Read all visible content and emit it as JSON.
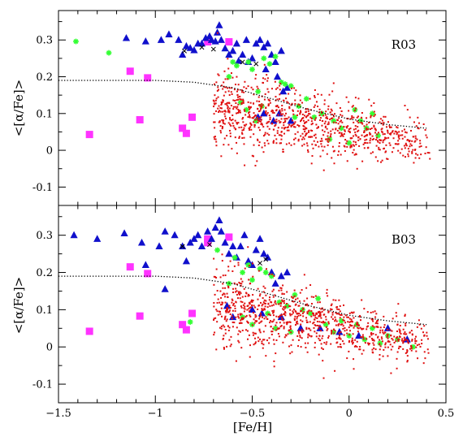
{
  "chart_data": [
    {
      "type": "scatter",
      "panel_label": "R03",
      "xlabel": "[Fe/H]",
      "ylabel": "<[α/Fe]>",
      "xlim": [
        -1.5,
        0.5
      ],
      "ylim": [
        -0.15,
        0.38
      ],
      "xticks": [
        -1.5,
        -1,
        -0.5,
        0,
        0.5
      ],
      "xtick_labels": [
        "",
        "",
        "",
        "",
        ""
      ],
      "yticks": [
        -0.1,
        0,
        0.1,
        0.2,
        0.3
      ],
      "ytick_labels": [
        "-0.1",
        "0",
        "0.1",
        "0.2",
        "0.3"
      ],
      "model_line": [
        [
          -1.5,
          0.19
        ],
        [
          -1.0,
          0.19
        ],
        [
          -0.8,
          0.185
        ],
        [
          -0.6,
          0.17
        ],
        [
          -0.4,
          0.14
        ],
        [
          -0.2,
          0.11
        ],
        [
          0.0,
          0.085
        ],
        [
          0.2,
          0.07
        ],
        [
          0.4,
          0.06
        ]
      ],
      "series": [
        {
          "marker": "square",
          "color": "#ff33ff",
          "points": [
            [
              -1.34,
              0.043
            ],
            [
              -1.13,
              0.215
            ],
            [
              -1.08,
              0.083
            ],
            [
              -1.04,
              0.197
            ],
            [
              -0.86,
              0.06
            ],
            [
              -0.84,
              0.046
            ],
            [
              -0.81,
              0.09
            ],
            [
              -0.73,
              0.295
            ],
            [
              -0.62,
              0.295
            ]
          ]
        },
        {
          "marker": "triangle",
          "color": "#1010cc",
          "points": [
            [
              -1.15,
              0.305
            ],
            [
              -1.05,
              0.296
            ],
            [
              -0.97,
              0.3
            ],
            [
              -0.93,
              0.315
            ],
            [
              -0.88,
              0.3
            ],
            [
              -0.86,
              0.26
            ],
            [
              -0.84,
              0.283
            ],
            [
              -0.82,
              0.278
            ],
            [
              -0.8,
              0.272
            ],
            [
              -0.78,
              0.29
            ],
            [
              -0.76,
              0.29
            ],
            [
              -0.74,
              0.305
            ],
            [
              -0.72,
              0.31
            ],
            [
              -0.71,
              0.3
            ],
            [
              -0.69,
              0.296
            ],
            [
              -0.68,
              0.32
            ],
            [
              -0.67,
              0.34
            ],
            [
              -0.66,
              0.3
            ],
            [
              -0.64,
              0.277
            ],
            [
              -0.62,
              0.26
            ],
            [
              -0.6,
              0.27
            ],
            [
              -0.58,
              0.29
            ],
            [
              -0.57,
              0.243
            ],
            [
              -0.55,
              0.26
            ],
            [
              -0.53,
              0.3
            ],
            [
              -0.52,
              0.24
            ],
            [
              -0.5,
              0.25
            ],
            [
              -0.48,
              0.29
            ],
            [
              -0.46,
              0.3
            ],
            [
              -0.44,
              0.28
            ],
            [
              -0.43,
              0.22
            ],
            [
              -0.42,
              0.29
            ],
            [
              -0.4,
              0.26
            ],
            [
              -0.38,
              0.24
            ],
            [
              -0.37,
              0.2
            ],
            [
              -0.35,
              0.27
            ],
            [
              -0.34,
              0.16
            ],
            [
              -0.32,
              0.17
            ],
            [
              -0.47,
              0.09
            ],
            [
              -0.44,
              0.1
            ],
            [
              -0.39,
              0.08
            ],
            [
              -0.36,
              0.1
            ],
            [
              -0.3,
              0.08
            ]
          ]
        },
        {
          "marker": "star",
          "color": "#33ff33",
          "points": [
            [
              -1.41,
              0.296
            ],
            [
              -1.24,
              0.265
            ],
            [
              -0.62,
              0.2
            ],
            [
              -0.6,
              0.24
            ],
            [
              -0.58,
              0.23
            ],
            [
              -0.52,
              0.24
            ],
            [
              -0.5,
              0.22
            ],
            [
              -0.47,
              0.16
            ],
            [
              -0.44,
              0.25
            ],
            [
              -0.41,
              0.235
            ],
            [
              -0.38,
              0.255
            ],
            [
              -0.35,
              0.185
            ],
            [
              -0.33,
              0.18
            ],
            [
              -0.3,
              0.175
            ],
            [
              -0.26,
              0.12
            ],
            [
              -0.22,
              0.14
            ],
            [
              -0.18,
              0.09
            ],
            [
              -0.14,
              0.1
            ],
            [
              -0.1,
              0.03
            ],
            [
              -0.08,
              0.08
            ],
            [
              -0.04,
              0.06
            ],
            [
              0.0,
              0.02
            ],
            [
              0.03,
              0.11
            ],
            [
              0.06,
              0.08
            ],
            [
              0.09,
              0.06
            ],
            [
              0.12,
              0.1
            ],
            [
              0.15,
              0.04
            ],
            [
              -0.28,
              0.09
            ],
            [
              -0.56,
              0.13
            ],
            [
              -0.53,
              0.11
            ],
            [
              -0.48,
              0.08
            ],
            [
              -0.45,
              0.12
            ]
          ]
        },
        {
          "marker": "cross",
          "color": "#000000",
          "points": [
            [
              -0.85,
              0.27
            ],
            [
              -0.76,
              0.28
            ],
            [
              -0.7,
              0.275
            ],
            [
              -0.55,
              0.24
            ],
            [
              -0.48,
              0.235
            ]
          ]
        },
        {
          "marker": "dot",
          "color": "#e01010",
          "cloud": {
            "seed": 7,
            "count": 950,
            "xrange": [
              -0.7,
              0.42
            ],
            "ycenter_at_xmin": 0.12,
            "ycenter_at_xmax": 0.015,
            "yspread": 0.045
          }
        }
      ]
    },
    {
      "type": "scatter",
      "panel_label": "B03",
      "xlabel": "[Fe/H]",
      "ylabel": "<[α/Fe]>",
      "xlim": [
        -1.5,
        0.5
      ],
      "ylim": [
        -0.15,
        0.38
      ],
      "xticks": [
        -1.5,
        -1,
        -0.5,
        0,
        0.5
      ],
      "xtick_labels": [
        "−1.5",
        "−1",
        "−0.5",
        "0",
        "0.5"
      ],
      "yticks": [
        -0.1,
        0,
        0.1,
        0.2,
        0.3
      ],
      "ytick_labels": [
        "-0.1",
        "0",
        "0.1",
        "0.2",
        "0.3"
      ],
      "model_line": [
        [
          -1.5,
          0.19
        ],
        [
          -1.0,
          0.19
        ],
        [
          -0.8,
          0.185
        ],
        [
          -0.6,
          0.17
        ],
        [
          -0.4,
          0.14
        ],
        [
          -0.2,
          0.11
        ],
        [
          0.0,
          0.085
        ],
        [
          0.2,
          0.07
        ],
        [
          0.4,
          0.06
        ]
      ],
      "series": [
        {
          "marker": "square",
          "color": "#ff33ff",
          "points": [
            [
              -1.34,
              0.042
            ],
            [
              -1.13,
              0.215
            ],
            [
              -1.08,
              0.083
            ],
            [
              -1.04,
              0.197
            ],
            [
              -0.86,
              0.06
            ],
            [
              -0.84,
              0.046
            ],
            [
              -0.81,
              0.09
            ],
            [
              -0.73,
              0.29
            ],
            [
              -0.73,
              0.28
            ],
            [
              -0.62,
              0.295
            ]
          ]
        },
        {
          "marker": "triangle",
          "color": "#1010cc",
          "points": [
            [
              -1.42,
              0.3
            ],
            [
              -1.3,
              0.29
            ],
            [
              -1.16,
              0.305
            ],
            [
              -1.07,
              0.28
            ],
            [
              -1.05,
              0.22
            ],
            [
              -0.98,
              0.27
            ],
            [
              -0.95,
              0.31
            ],
            [
              -0.9,
              0.3
            ],
            [
              -0.86,
              0.27
            ],
            [
              -0.84,
              0.23
            ],
            [
              -0.82,
              0.28
            ],
            [
              -0.8,
              0.29
            ],
            [
              -0.78,
              0.3
            ],
            [
              -0.76,
              0.27
            ],
            [
              -0.73,
              0.31
            ],
            [
              -0.71,
              0.29
            ],
            [
              -0.69,
              0.32
            ],
            [
              -0.67,
              0.34
            ],
            [
              -0.66,
              0.31
            ],
            [
              -0.64,
              0.28
            ],
            [
              -0.62,
              0.25
            ],
            [
              -0.6,
              0.27
            ],
            [
              -0.58,
              0.24
            ],
            [
              -0.56,
              0.27
            ],
            [
              -0.54,
              0.3
            ],
            [
              -0.52,
              0.23
            ],
            [
              -0.5,
              0.22
            ],
            [
              -0.48,
              0.26
            ],
            [
              -0.46,
              0.29
            ],
            [
              -0.44,
              0.25
            ],
            [
              -0.42,
              0.24
            ],
            [
              -0.4,
              0.2
            ],
            [
              -0.38,
              0.17
            ],
            [
              -0.35,
              0.19
            ],
            [
              -0.32,
              0.2
            ],
            [
              -0.95,
              0.155
            ],
            [
              -0.63,
              0.11
            ],
            [
              -0.6,
              0.08
            ],
            [
              -0.5,
              0.1
            ],
            [
              -0.45,
              0.09
            ],
            [
              -0.35,
              0.08
            ],
            [
              -0.25,
              0.05
            ],
            [
              -0.15,
              0.05
            ],
            [
              -0.05,
              0.04
            ],
            [
              0.05,
              0.03
            ],
            [
              0.2,
              0.05
            ],
            [
              0.3,
              0.02
            ]
          ]
        },
        {
          "marker": "star",
          "color": "#33ff33",
          "points": [
            [
              -0.82,
              0.067
            ],
            [
              -0.68,
              0.26
            ],
            [
              -0.62,
              0.17
            ],
            [
              -0.59,
              0.24
            ],
            [
              -0.55,
              0.2
            ],
            [
              -0.52,
              0.22
            ],
            [
              -0.5,
              0.18
            ],
            [
              -0.46,
              0.21
            ],
            [
              -0.43,
              0.2
            ],
            [
              -0.4,
              0.19
            ],
            [
              -0.36,
              0.12
            ],
            [
              -0.32,
              0.11
            ],
            [
              -0.28,
              0.14
            ],
            [
              -0.24,
              0.1
            ],
            [
              -0.2,
              0.09
            ],
            [
              -0.16,
              0.13
            ],
            [
              -0.12,
              0.06
            ],
            [
              -0.08,
              0.04
            ],
            [
              -0.04,
              0.07
            ],
            [
              0.0,
              0.03
            ],
            [
              0.04,
              0.06
            ],
            [
              0.08,
              0.02
            ],
            [
              0.12,
              0.05
            ],
            [
              0.16,
              0.01
            ],
            [
              0.2,
              0.03
            ],
            [
              0.25,
              0.02
            ],
            [
              0.33,
              0.0
            ],
            [
              -0.55,
              0.08
            ],
            [
              -0.5,
              0.06
            ],
            [
              -0.42,
              0.09
            ],
            [
              -0.38,
              0.05
            ],
            [
              -0.3,
              0.04
            ]
          ]
        },
        {
          "marker": "cross",
          "color": "#000000",
          "points": [
            [
              -0.86,
              0.27
            ],
            [
              -0.72,
              0.275
            ],
            [
              -0.46,
              0.225
            ],
            [
              -0.43,
              0.235
            ]
          ]
        },
        {
          "marker": "dot",
          "color": "#e01010",
          "cloud": {
            "seed": 23,
            "count": 950,
            "xrange": [
              -0.7,
              0.42
            ],
            "ycenter_at_xmin": 0.115,
            "ycenter_at_xmax": 0.012,
            "yspread": 0.045
          }
        }
      ]
    }
  ]
}
